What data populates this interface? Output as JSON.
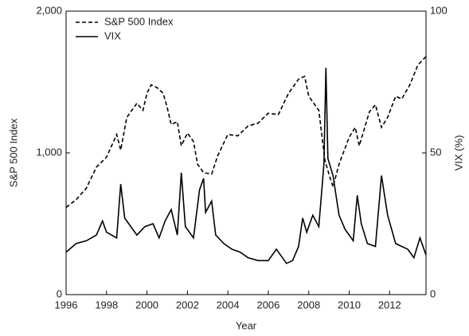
{
  "chart_data": {
    "type": "line",
    "xlabel": "Year",
    "ylabel": "S&P 500 Index",
    "y2label": "VIX (%)",
    "xlim": [
      1996,
      2013.8
    ],
    "xticks": [
      1996,
      1998,
      2000,
      2002,
      2004,
      2006,
      2008,
      2010,
      2012
    ],
    "ylim": [
      0,
      2000
    ],
    "yticks": [
      0,
      {
        "value": 1000,
        "label": "1,000"
      },
      {
        "value": 2000,
        "label": "2,000"
      }
    ],
    "y2lim": [
      0,
      100
    ],
    "y2ticks": [
      0,
      50,
      100
    ],
    "legend": "upper left",
    "series": [
      {
        "name": "S&P 500 Index",
        "color": "#000000",
        "line_style": "dashed",
        "x": [
          1996.0,
          1996.5,
          1997.0,
          1997.5,
          1998.0,
          1998.5,
          1998.7,
          1999.0,
          1999.5,
          1999.8,
          2000.0,
          2000.2,
          2000.5,
          2000.8,
          2001.0,
          2001.2,
          2001.5,
          2001.7,
          2002.0,
          2002.3,
          2002.5,
          2002.8,
          2003.2,
          2003.5,
          2004.0,
          2004.5,
          2005.0,
          2005.5,
          2006.0,
          2006.5,
          2007.0,
          2007.5,
          2007.8,
          2008.0,
          2008.5,
          2008.8,
          2009.0,
          2009.2,
          2009.5,
          2010.0,
          2010.3,
          2010.5,
          2011.0,
          2011.3,
          2011.6,
          2011.9,
          2012.3,
          2012.6,
          2013.0,
          2013.4,
          2013.8
        ],
        "values": [
          615,
          670,
          750,
          900,
          970,
          1130,
          1020,
          1250,
          1350,
          1300,
          1420,
          1480,
          1460,
          1420,
          1320,
          1200,
          1220,
          1050,
          1140,
          1080,
          920,
          860,
          850,
          980,
          1130,
          1120,
          1190,
          1210,
          1280,
          1270,
          1420,
          1520,
          1540,
          1400,
          1300,
          950,
          850,
          760,
          920,
          1110,
          1180,
          1050,
          1290,
          1340,
          1180,
          1250,
          1400,
          1380,
          1480,
          1620,
          1680
        ]
      },
      {
        "name": "VIX",
        "color": "#000000",
        "line_style": "solid",
        "axis": "y2",
        "x": [
          1996.0,
          1996.5,
          1997.0,
          1997.5,
          1997.8,
          1998.0,
          1998.5,
          1998.7,
          1998.9,
          1999.2,
          1999.5,
          1999.9,
          2000.3,
          2000.6,
          2000.9,
          2001.2,
          2001.5,
          2001.7,
          2001.9,
          2002.3,
          2002.6,
          2002.8,
          2002.9,
          2003.2,
          2003.4,
          2003.8,
          2004.2,
          2004.6,
          2005.0,
          2005.5,
          2006.0,
          2006.4,
          2006.9,
          2007.2,
          2007.5,
          2007.7,
          2007.9,
          2008.2,
          2008.5,
          2008.75,
          2008.85,
          2008.95,
          2009.2,
          2009.5,
          2009.8,
          2010.2,
          2010.4,
          2010.6,
          2010.9,
          2011.3,
          2011.6,
          2011.9,
          2012.3,
          2012.6,
          2012.9,
          2013.2,
          2013.5,
          2013.8
        ],
        "values": [
          15,
          18,
          19,
          21,
          26,
          22,
          20,
          39,
          27,
          24,
          21,
          24,
          25,
          20,
          26,
          30,
          21,
          43,
          24,
          20,
          37,
          41,
          29,
          33,
          21,
          18,
          16,
          15,
          13,
          12,
          12,
          16,
          11,
          12,
          17,
          27,
          22,
          28,
          24,
          46,
          80,
          48,
          42,
          28,
          23,
          19,
          35,
          25,
          18,
          17,
          42,
          28,
          18,
          17,
          16,
          13,
          20,
          14
        ]
      }
    ]
  }
}
